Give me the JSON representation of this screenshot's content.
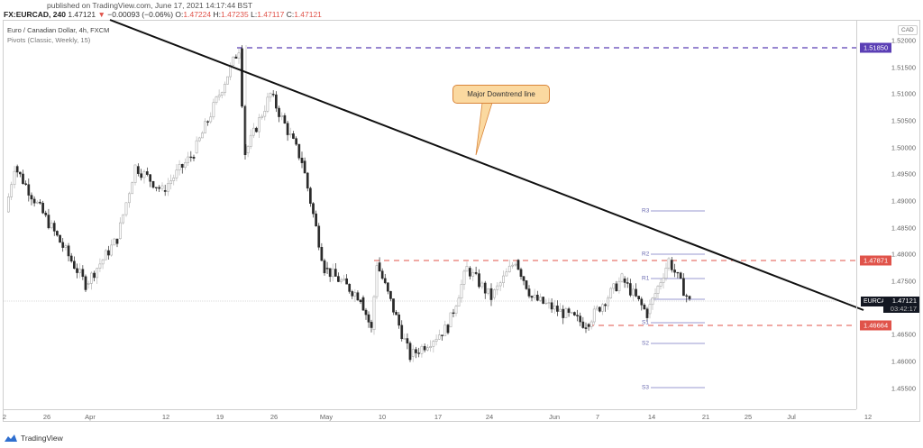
{
  "header": {
    "published": "published on TradingView.com, June 17, 2021 14:17:44 BST",
    "symbol_interval": "FX:EURCAD, 240",
    "last": "1.47121",
    "change_arrow": "▼",
    "change": "−0.00093 (−0.06%)",
    "o_label": "O:",
    "o": "1.47224",
    "h_label": "H:",
    "h": "1.47235",
    "l_label": "L:",
    "l": "1.47117",
    "c_label": "C:",
    "c": "1.47121"
  },
  "legend": {
    "title": "Euro / Canadian Dollar, 4h, FXCM",
    "indicator": "Pivots (Classic, Weekly, 15)"
  },
  "price_axis": {
    "currency": "CAD",
    "ticks": [
      "1.52000",
      "1.51500",
      "1.51000",
      "1.50500",
      "1.50000",
      "1.49500",
      "1.49000",
      "1.48500",
      "1.48000",
      "1.47500",
      "1.46500",
      "1.46000",
      "1.45500"
    ],
    "tags": {
      "top_level": "1.51850",
      "resistance": "1.47871",
      "support": "1.46664"
    },
    "current": {
      "symbol": "EURCAD",
      "price": "1.47121",
      "countdown": "03:42:17"
    }
  },
  "time_axis": {
    "ticks": [
      "2",
      "26",
      "Apr",
      "12",
      "19",
      "26",
      "May",
      "10",
      "17",
      "24",
      "Jun",
      "7",
      "14",
      "21",
      "25",
      "Jul",
      "12"
    ]
  },
  "annotation": {
    "callout": "Major Downtrend line"
  },
  "pivots": {
    "labels": [
      "R3",
      "R2",
      "R1",
      "S1",
      "S2",
      "S3"
    ]
  },
  "branding": {
    "logo_text": "TradingView"
  },
  "colors": {
    "up_candle": "#ffffff",
    "down_candle": "#2a2a2a",
    "trendline": "#111111",
    "top_level": "#5b3fb5",
    "red_level": "#e0534a",
    "pivot_line": "#9a9ad0",
    "callout_bg": "#fbd9a0"
  },
  "chart_data": {
    "type": "candlestick",
    "title": "Euro / Canadian Dollar, 4h, FXCM",
    "symbol": "FX:EURCAD",
    "interval": "240",
    "xlabel": "",
    "ylabel": "CAD",
    "ylim": [
      1.4525,
      1.5215
    ],
    "x_ticks": [
      "2",
      "26",
      "Apr",
      "12",
      "19",
      "26",
      "May",
      "10",
      "17",
      "24",
      "Jun",
      "7",
      "14",
      "21",
      "25",
      "Jul",
      "12"
    ],
    "y_ticks": [
      1.52,
      1.515,
      1.51,
      1.505,
      1.5,
      1.495,
      1.49,
      1.485,
      1.48,
      1.475,
      1.465,
      1.46,
      1.455
    ],
    "ohlc_last": {
      "open": 1.47224,
      "high": 1.47235,
      "low": 1.47117,
      "close": 1.47121,
      "change": -0.00093,
      "change_pct": -0.06
    },
    "approx_swing_closes": [
      {
        "date": "Mar 22",
        "price": 1.488
      },
      {
        "date": "Mar 23",
        "price": 1.4965
      },
      {
        "date": "Mar 31",
        "price": 1.4745
      },
      {
        "date": "Apr 6",
        "price": 1.483
      },
      {
        "date": "Apr 8",
        "price": 1.4965
      },
      {
        "date": "Apr 14",
        "price": 1.492
      },
      {
        "date": "Apr 16",
        "price": 1.499
      },
      {
        "date": "Apr 20",
        "price": 1.5185
      },
      {
        "date": "Apr 21",
        "price": 1.499
      },
      {
        "date": "Apr 23",
        "price": 1.51
      },
      {
        "date": "Apr 28",
        "price": 1.4975
      },
      {
        "date": "May 4",
        "price": 1.4775
      },
      {
        "date": "May 7",
        "price": 1.472
      },
      {
        "date": "May 10",
        "price": 1.466
      },
      {
        "date": "May 11",
        "price": 1.4785
      },
      {
        "date": "May 13",
        "price": 1.461
      },
      {
        "date": "May 19",
        "price": 1.4665
      },
      {
        "date": "May 21",
        "price": 1.4775
      },
      {
        "date": "May 24",
        "price": 1.472
      },
      {
        "date": "May 26",
        "price": 1.479
      },
      {
        "date": "May 28",
        "price": 1.472
      },
      {
        "date": "Jun 4",
        "price": 1.467
      },
      {
        "date": "Jun 9",
        "price": 1.4755
      },
      {
        "date": "Jun 14",
        "price": 1.469
      },
      {
        "date": "Jun 16",
        "price": 1.479
      },
      {
        "date": "Jun 17",
        "price": 1.47121
      }
    ],
    "horizontal_levels": [
      {
        "label": "top",
        "price": 1.5185,
        "style": "dashed",
        "color": "#5b3fb5"
      },
      {
        "label": "resistance",
        "price": 1.47871,
        "style": "dashed",
        "color": "#e0534a"
      },
      {
        "label": "support",
        "price": 1.46664,
        "style": "dashed",
        "color": "#e0534a"
      }
    ],
    "pivots_weekly": [
      {
        "label": "R3",
        "price": 1.488
      },
      {
        "label": "R2",
        "price": 1.48
      },
      {
        "label": "R1",
        "price": 1.4755
      },
      {
        "label": "P",
        "price": 1.4717
      },
      {
        "label": "S1",
        "price": 1.4672
      },
      {
        "label": "S2",
        "price": 1.4632
      },
      {
        "label": "S3",
        "price": 1.455
      }
    ],
    "trendline": {
      "label": "Major Downtrend line",
      "from": {
        "date": "Mar 22",
        "price": 1.5235
      },
      "to": {
        "date": "Jun 25",
        "price": 1.469
      }
    }
  }
}
